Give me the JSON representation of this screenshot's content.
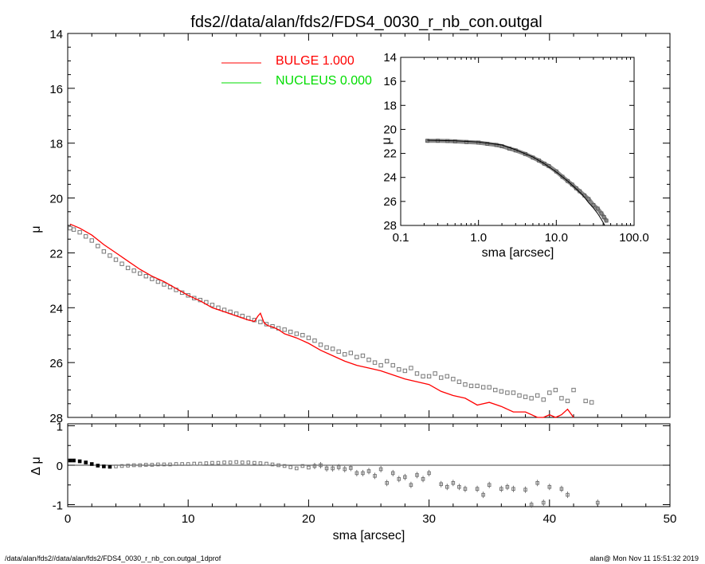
{
  "title": "fds2//data/alan/fds2/FDS4_0030_r_nb_con.outgal",
  "footer_left": "/data/alan/fds2//data/alan/fds2/FDS4_0030_r_nb_con.outgal_1dprof",
  "footer_right": "alan@  Mon Nov 11 15:51:32 2019",
  "legend": [
    {
      "label": "BULGE  1.000",
      "color": "#ff0000"
    },
    {
      "label": "NUCLEUS  0.000",
      "color": "#00dd00"
    }
  ],
  "chart_data": [
    {
      "id": "main",
      "type": "scatter",
      "xlabel": "",
      "ylabel": "μ",
      "xlim": [
        0,
        50
      ],
      "ylim": [
        28,
        14
      ],
      "xticks": [
        0,
        10,
        20,
        30,
        40,
        50
      ],
      "yticks": [
        "14",
        "16",
        "18",
        "20",
        "22",
        "24",
        "26",
        "28"
      ],
      "series": [
        {
          "name": "data",
          "color": "#777777",
          "x": [
            0.2,
            0.5,
            1.0,
            1.5,
            2.0,
            2.5,
            3.0,
            3.5,
            4.0,
            4.5,
            5.0,
            5.5,
            6.0,
            6.5,
            7.0,
            7.5,
            8.0,
            8.5,
            9.0,
            9.5,
            10.0,
            10.5,
            11.0,
            11.5,
            12.0,
            12.5,
            13.0,
            13.5,
            14.0,
            14.5,
            15.0,
            15.5,
            16.0,
            16.5,
            17.0,
            17.5,
            18.0,
            18.5,
            19.0,
            19.5,
            20.0,
            20.5,
            21.0,
            21.5,
            22.0,
            22.5,
            23.0,
            23.5,
            24.0,
            24.5,
            25.0,
            25.5,
            26.0,
            26.5,
            27.0,
            27.5,
            28.0,
            28.5,
            29.0,
            29.5,
            30.0,
            30.5,
            31.0,
            31.5,
            32.0,
            32.5,
            33.0,
            33.5,
            34.0,
            34.5,
            35.0,
            35.5,
            36.0,
            36.5,
            37.0,
            37.5,
            38.0,
            38.5,
            39.0,
            39.5,
            40.0,
            40.5,
            41.0,
            41.5,
            42.0,
            43.0,
            43.5
          ],
          "y": [
            21.1,
            21.15,
            21.25,
            21.4,
            21.55,
            21.75,
            21.95,
            22.1,
            22.25,
            22.4,
            22.55,
            22.65,
            22.75,
            22.85,
            22.95,
            23.05,
            23.15,
            23.25,
            23.35,
            23.45,
            23.55,
            23.65,
            23.72,
            23.8,
            23.9,
            24.0,
            24.08,
            24.15,
            24.22,
            24.3,
            24.38,
            24.45,
            24.52,
            24.6,
            24.68,
            24.75,
            24.8,
            24.88,
            24.95,
            25.0,
            25.1,
            25.2,
            25.35,
            25.45,
            25.5,
            25.6,
            25.7,
            25.65,
            25.8,
            25.75,
            25.9,
            26.0,
            26.1,
            25.95,
            26.1,
            26.25,
            26.3,
            26.2,
            26.4,
            26.5,
            26.5,
            26.4,
            26.55,
            26.5,
            26.6,
            26.7,
            26.8,
            26.85,
            26.85,
            26.9,
            26.9,
            27.0,
            27.05,
            27.1,
            27.1,
            27.2,
            27.25,
            27.3,
            27.2,
            27.35,
            27.1,
            27.0,
            27.3,
            27.4,
            27.0,
            27.4,
            27.45
          ]
        },
        {
          "name": "BULGE",
          "color": "#ff0000",
          "x": [
            0.2,
            1.0,
            2.0,
            3.0,
            4.0,
            5.0,
            6.0,
            7.0,
            8.0,
            9.0,
            10.0,
            11.0,
            12.0,
            13.0,
            14.0,
            15.0,
            15.5,
            15.8,
            16.0,
            16.3,
            16.6,
            17.0,
            17.5,
            18.0,
            19.0,
            20.0,
            21.0,
            22.0,
            23.0,
            24.0,
            25.0,
            26.0,
            27.0,
            28.0,
            29.0,
            30.0,
            31.0,
            32.0,
            33.0,
            34.0,
            35.0,
            36.0,
            37.0,
            38.0,
            39.0,
            39.5,
            40.0,
            40.5,
            41.0,
            41.5,
            42.0
          ],
          "y": [
            20.95,
            21.1,
            21.35,
            21.7,
            22.0,
            22.3,
            22.6,
            22.85,
            23.05,
            23.3,
            23.55,
            23.75,
            24.0,
            24.15,
            24.3,
            24.45,
            24.5,
            24.3,
            24.2,
            24.55,
            24.65,
            24.7,
            24.8,
            24.95,
            25.1,
            25.3,
            25.55,
            25.75,
            25.95,
            26.1,
            26.2,
            26.3,
            26.45,
            26.6,
            26.7,
            26.8,
            27.05,
            27.2,
            27.3,
            27.55,
            27.45,
            27.6,
            27.8,
            27.8,
            28.1,
            28.2,
            27.9,
            28.1,
            27.9,
            27.7,
            28.2
          ]
        }
      ]
    },
    {
      "id": "residual",
      "type": "scatter",
      "xlabel": "sma [arcsec]",
      "ylabel": "Δ μ",
      "xlim": [
        0,
        50
      ],
      "ylim": [
        -1.05,
        1.05
      ],
      "xticks": [
        "0",
        "10",
        "20",
        "30",
        "40",
        "50"
      ],
      "yticks": [
        "1",
        "0",
        "-1"
      ],
      "series": [
        {
          "name": "residual",
          "color": "#777777",
          "x": [
            0.2,
            0.5,
            1.0,
            1.5,
            2.0,
            2.5,
            3.0,
            3.5,
            4.0,
            4.5,
            5.0,
            5.5,
            6.0,
            6.5,
            7.0,
            7.5,
            8.0,
            8.5,
            9.0,
            9.5,
            10.0,
            10.5,
            11.0,
            11.5,
            12.0,
            12.5,
            13.0,
            13.5,
            14.0,
            14.5,
            15.0,
            15.5,
            16.0,
            16.5,
            17.0,
            17.5,
            18.0,
            18.5,
            19.0,
            19.5,
            20.0,
            20.5,
            21.0,
            21.5,
            22.0,
            22.5,
            23.0,
            23.5,
            24.0,
            24.5,
            25.0,
            25.5,
            26.0,
            26.5,
            27.0,
            27.5,
            28.0,
            28.5,
            29.0,
            29.5,
            30.0,
            31.0,
            31.5,
            32.0,
            32.5,
            33.0,
            34.0,
            34.5,
            35.0,
            36.0,
            36.5,
            37.0,
            38.0,
            38.5,
            39.0,
            39.5,
            40.0,
            41.0,
            41.5,
            44.0
          ],
          "y": [
            0.12,
            0.12,
            0.1,
            0.07,
            0.03,
            -0.01,
            -0.03,
            -0.04,
            -0.03,
            -0.02,
            -0.01,
            0.0,
            0.0,
            0.01,
            0.01,
            0.02,
            0.02,
            0.02,
            0.03,
            0.03,
            0.03,
            0.04,
            0.04,
            0.05,
            0.06,
            0.06,
            0.07,
            0.07,
            0.08,
            0.07,
            0.07,
            0.06,
            0.05,
            0.04,
            0.02,
            0.0,
            -0.02,
            -0.05,
            -0.08,
            -0.02,
            -0.06,
            -0.02,
            0.0,
            -0.08,
            -0.08,
            -0.05,
            -0.1,
            -0.07,
            -0.2,
            -0.2,
            -0.15,
            -0.27,
            -0.1,
            -0.45,
            -0.2,
            -0.35,
            -0.3,
            -0.5,
            -0.25,
            -0.35,
            -0.2,
            -0.48,
            -0.55,
            -0.45,
            -0.55,
            -0.6,
            -0.6,
            -0.75,
            -0.5,
            -0.6,
            -0.55,
            -0.6,
            -0.62,
            -1.0,
            -0.45,
            -0.95,
            -0.55,
            -0.6,
            -0.75,
            -0.95
          ]
        }
      ]
    },
    {
      "id": "inset",
      "type": "scatter",
      "xscale": "log",
      "xlabel": "sma [arcsec]",
      "ylabel": "μ",
      "xlim": [
        0.1,
        100
      ],
      "ylim": [
        28,
        14
      ],
      "xticks": [
        "0.1",
        "1.0",
        "10.0",
        "100.0"
      ],
      "yticks": [
        "14",
        "16",
        "18",
        "20",
        "22",
        "24",
        "26",
        "28"
      ],
      "series": [
        {
          "name": "data",
          "color": "#555555",
          "x": [
            0.22,
            0.3,
            0.4,
            0.5,
            0.7,
            1.0,
            1.3,
            1.7,
            2.0,
            2.5,
            3.0,
            4.0,
            5.0,
            6.0,
            7.0,
            8.0,
            10.0,
            12.0,
            14.0,
            16.0,
            18.0,
            20.0,
            23.0,
            26.0,
            30.0,
            34.0,
            38.0,
            41.0,
            44.0
          ],
          "y": [
            20.95,
            20.95,
            20.97,
            21.0,
            21.05,
            21.1,
            21.2,
            21.3,
            21.4,
            21.6,
            21.75,
            22.05,
            22.35,
            22.6,
            22.85,
            23.05,
            23.5,
            23.95,
            24.3,
            24.6,
            24.9,
            25.15,
            25.5,
            25.8,
            26.3,
            26.6,
            27.0,
            27.3,
            27.6
          ]
        },
        {
          "name": "BULGE",
          "color": "#000000",
          "x": [
            0.22,
            0.5,
            1.0,
            2.0,
            3.0,
            5.0,
            7.0,
            10.0,
            14.0,
            18.0,
            22.0,
            26.0,
            30.0,
            34.0,
            38.0,
            42.0
          ],
          "y": [
            20.9,
            20.95,
            21.05,
            21.3,
            21.7,
            22.3,
            22.85,
            23.55,
            24.3,
            24.95,
            25.5,
            26.1,
            26.55,
            27.0,
            27.5,
            28.1
          ]
        }
      ]
    }
  ]
}
